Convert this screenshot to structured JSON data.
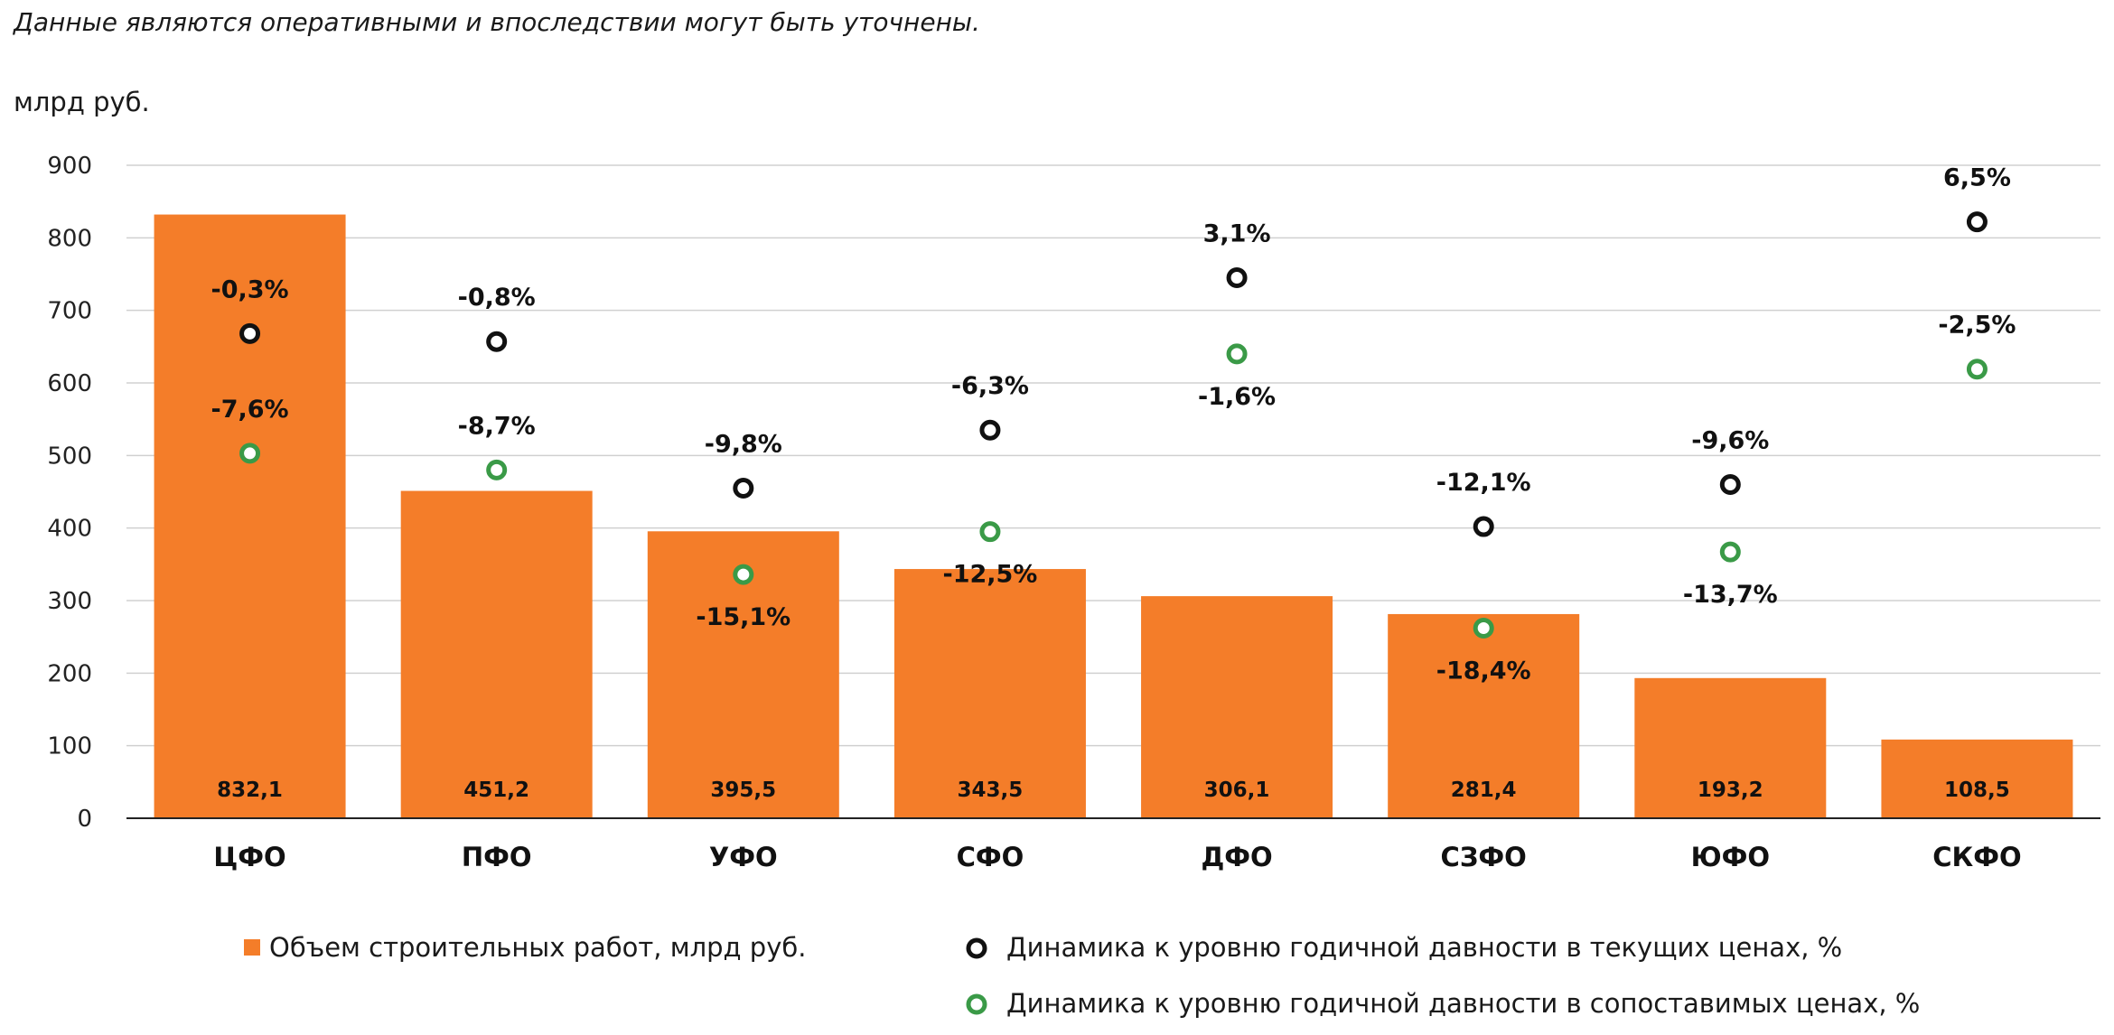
{
  "note": "Данные являются оперативными и впоследствии могут быть уточнены.",
  "unit_label": "млрд руб.",
  "colors": {
    "bar": "#F47D29",
    "current_marker": "#111111",
    "comparable_marker": "#3A9A47",
    "grid": "#d0d0d0"
  },
  "chart_data": {
    "type": "bar",
    "categories": [
      "ЦФО",
      "ПФО",
      "УФО",
      "СФО",
      "ДФО",
      "СЗФО",
      "ЮФО",
      "СКФО"
    ],
    "ylim": [
      0,
      900
    ],
    "yticks": [
      0,
      100,
      200,
      300,
      400,
      500,
      600,
      700,
      800,
      900
    ],
    "grid": true,
    "legend_position": "bottom",
    "series": [
      {
        "name": "Объем строительных работ, млрд руб.",
        "type": "bar",
        "values": [
          832.1,
          451.2,
          395.5,
          343.5,
          306.1,
          281.4,
          193.2,
          108.5
        ],
        "labels": [
          "832,1",
          "451,2",
          "395,5",
          "343,5",
          "306,1",
          "281,4",
          "193,2",
          "108,5"
        ]
      },
      {
        "name": "Динамика к уровню годичной давности в текущих ценах, %",
        "type": "scatter",
        "values": [
          668,
          657,
          455,
          535,
          745,
          402,
          460,
          822
        ],
        "labels": [
          "-0,3%",
          "-0,8%",
          "-9,8%",
          "-6,3%",
          "3,1%",
          "-12,1%",
          "-9,6%",
          "6,5%"
        ],
        "label_position": [
          "above",
          "above",
          "above",
          "above",
          "above",
          "above",
          "above",
          "above"
        ]
      },
      {
        "name": "Динамика к уровню годичной давности в сопоставимых ценах, %",
        "type": "scatter",
        "values": [
          503,
          480,
          336,
          395,
          640,
          262,
          367,
          619
        ],
        "labels": [
          "-7,6%",
          "-8,7%",
          "-15,1%",
          "-12,5%",
          "-1,6%",
          "-18,4%",
          "-13,7%",
          "-2,5%"
        ],
        "label_position": [
          "above",
          "above",
          "below",
          "below",
          "below",
          "below",
          "below",
          "above"
        ]
      }
    ]
  }
}
